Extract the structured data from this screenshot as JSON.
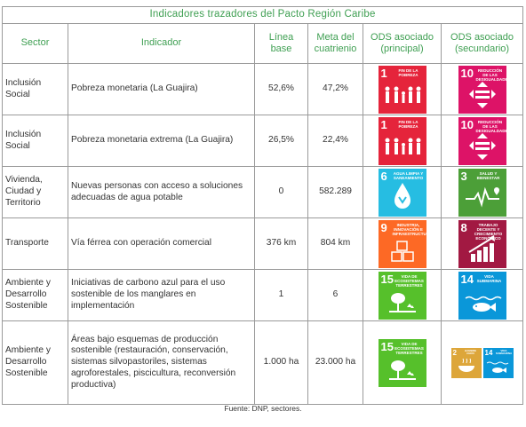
{
  "table": {
    "title": "Indicadores trazadores del Pacto Región Caribe",
    "headers": {
      "sector": "Sector",
      "indicador": "Indicador",
      "linea_base": "Línea base",
      "meta": "Meta del cuatrienio",
      "ods_principal": "ODS asociado (principal)",
      "ods_secundario": "ODS asociado (secundario)"
    },
    "rows": [
      {
        "sector": "Inclusión Social",
        "indicador": "Pobreza monetaria (La Guajira)",
        "linea_base": "52,6%",
        "meta": "47,2%"
      },
      {
        "sector": "Inclusión Social",
        "indicador": "Pobreza monetaria extrema (La Guajira)",
        "linea_base": "26,5%",
        "meta": "22,4%"
      },
      {
        "sector": "Vivienda, Ciudad y Territorio",
        "indicador": "Nuevas personas con acceso a soluciones adecuadas de agua potable",
        "linea_base": "0",
        "meta": "582.289"
      },
      {
        "sector": "Transporte",
        "indicador": "Vía férrea con operación comercial",
        "linea_base": "376 km",
        "meta": "804 km"
      },
      {
        "sector": "Ambiente y Desarrollo Sostenible",
        "indicador": "Iniciativas de carbono azul para el uso sostenible de los manglares en implementación",
        "linea_base": "1",
        "meta": "6"
      },
      {
        "sector": "Ambiente y Desarrollo Sostenible",
        "indicador": "Áreas bajo esquemas de producción sostenible (restauración, conservación, sistemas silvopastoriles, sistemas agroforestales, piscicultura, reconversión productiva)",
        "linea_base": "1.000 ha",
        "meta": "23.000 ha"
      }
    ]
  },
  "ods": {
    "ods1": {
      "number": "1",
      "label": "Fin de la pobreza",
      "color": "#e5243b",
      "icon": "family-icon"
    },
    "ods10": {
      "number": "10",
      "label": "Reducción de las desigualdades",
      "color": "#dd1367",
      "icon": "equality-icon"
    },
    "ods6": {
      "number": "6",
      "label": "Agua limpia y saneamiento",
      "color": "#26bde2",
      "icon": "water-drop-icon"
    },
    "ods3": {
      "number": "3",
      "label": "Salud y bienestar",
      "color": "#4c9f38",
      "icon": "heartbeat-icon"
    },
    "ods9": {
      "number": "9",
      "label": "Industria, innovación e infraestructura",
      "color": "#fd6925",
      "icon": "cubes-icon"
    },
    "ods8": {
      "number": "8",
      "label": "Trabajo decente y crecimiento económico",
      "color": "#a21942",
      "icon": "growth-chart-icon"
    },
    "ods15": {
      "number": "15",
      "label": "Vida de ecosistemas terrestres",
      "color": "#56c02b",
      "icon": "tree-icon"
    },
    "ods14": {
      "number": "14",
      "label": "Vida submarina",
      "color": "#0a97d9",
      "icon": "fish-icon"
    },
    "ods2": {
      "number": "2",
      "label": "Hambre cero",
      "color": "#dda63a",
      "icon": "bowl-icon"
    }
  },
  "source": "Fuente: DNP, sectores."
}
